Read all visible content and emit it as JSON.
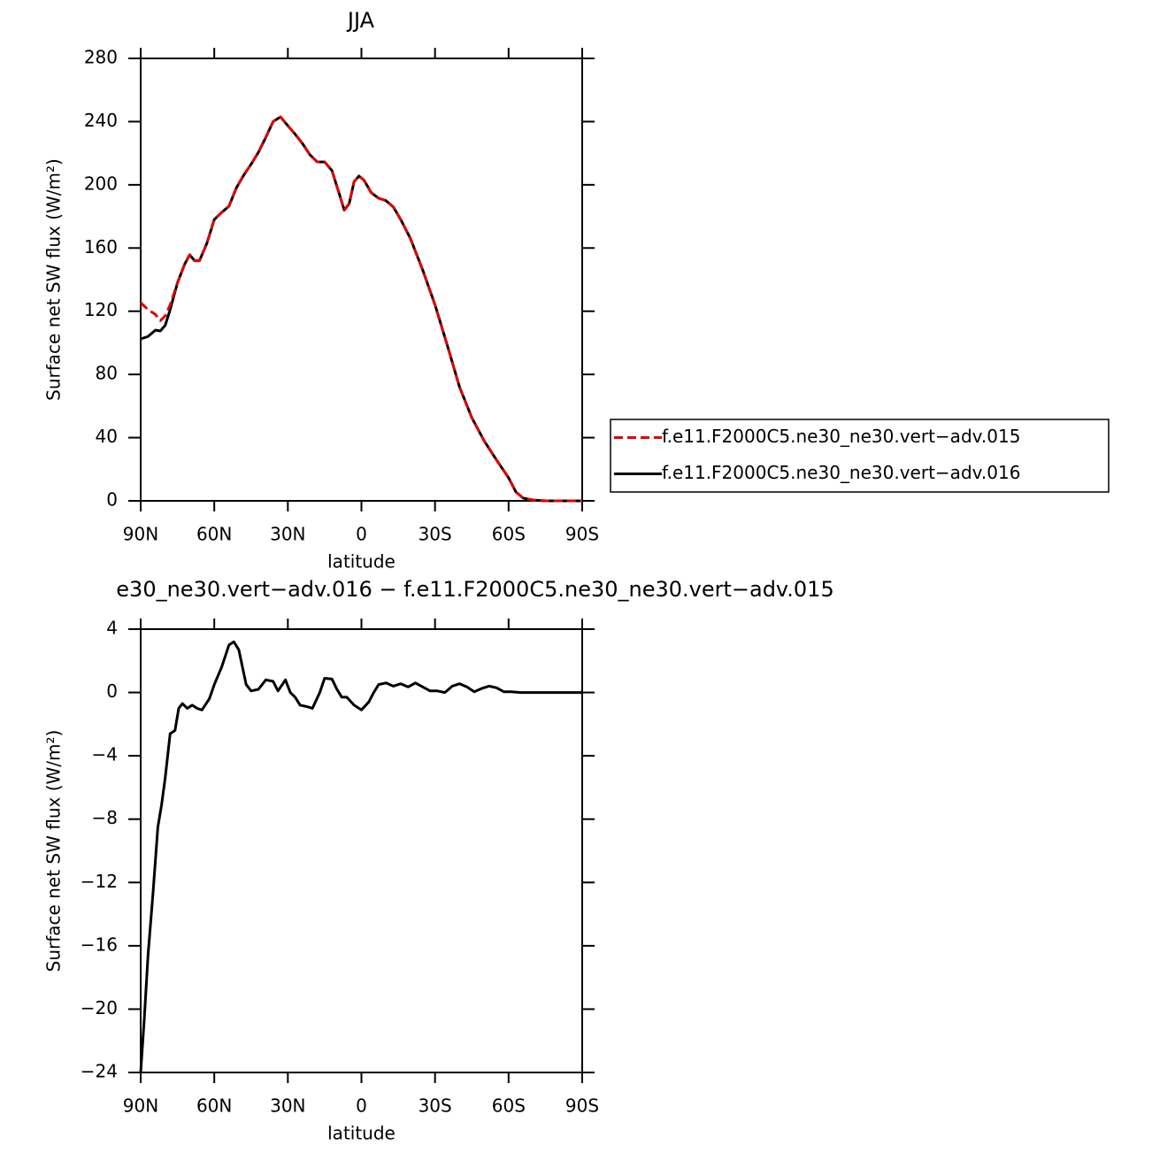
{
  "chart_data": [
    {
      "type": "line",
      "title": "JJA",
      "xlabel": "latitude",
      "ylabel": "Surface net SW flux (W/m²)",
      "xlim": [
        90,
        -90
      ],
      "ylim": [
        0,
        280
      ],
      "xticks": [
        {
          "value": 90,
          "label": "90N"
        },
        {
          "value": 60,
          "label": "60N"
        },
        {
          "value": 30,
          "label": "30N"
        },
        0,
        {
          "value": -30,
          "label": "30S"
        },
        {
          "value": -60,
          "label": "60S"
        },
        {
          "value": -90,
          "label": "90S"
        }
      ],
      "yticks": [
        0,
        40,
        80,
        120,
        160,
        200,
        240,
        280
      ],
      "legend": "right",
      "x": [
        90,
        87,
        84,
        82,
        80,
        78,
        75,
        72,
        70,
        68,
        66,
        63,
        60,
        57,
        54,
        51,
        48,
        45,
        42,
        39,
        36,
        33,
        30,
        27,
        24,
        21,
        18,
        15,
        12,
        9,
        7,
        5,
        3,
        1,
        -1,
        -4,
        -7,
        -10,
        -13,
        -16,
        -20,
        -25,
        -30,
        -35,
        -40,
        -45,
        -50,
        -55,
        -60,
        -63,
        -66,
        -70,
        -75,
        -80,
        -85,
        -90
      ],
      "series": [
        {
          "name": "f.e11.F2000C5.ne30_ne30.vert−adv.015",
          "color": "#e00000",
          "line_style": "dashed",
          "values": [
            125.4,
            121,
            118,
            114,
            117,
            124,
            138,
            150,
            155.7,
            152,
            152,
            163,
            178,
            182.5,
            186.5,
            198,
            206,
            213,
            220.6,
            230,
            240,
            243,
            237.4,
            232,
            226,
            219,
            214.5,
            214.5,
            209,
            194,
            184,
            188,
            202,
            205.5,
            203,
            195,
            191.5,
            190,
            186,
            178,
            166,
            146,
            124,
            98.5,
            72,
            52.6,
            38,
            26,
            14.6,
            5.6,
            1.7,
            0.5,
            0,
            0,
            0,
            0
          ]
        },
        {
          "name": "f.e11.F2000C5.ne30_ne30.vert−adv.016",
          "color": "#000000",
          "line_style": "solid",
          "values": [
            102.5,
            104,
            108,
            107.5,
            111,
            121,
            138,
            150,
            155.7,
            152,
            152,
            163,
            178,
            182.5,
            186.5,
            198,
            206,
            213,
            220.6,
            230,
            240,
            243,
            237.4,
            232,
            226,
            219,
            214.5,
            214.5,
            209,
            194,
            184,
            188,
            202,
            205.5,
            203,
            195,
            191.5,
            190,
            186,
            178,
            166,
            146,
            124,
            98.5,
            72,
            52.6,
            38,
            26,
            14.6,
            5.6,
            1.7,
            0.5,
            0,
            0,
            0,
            0
          ]
        }
      ]
    },
    {
      "type": "line",
      "title": "e30_ne30.vert−adv.016 − f.e11.F2000C5.ne30_ne30.vert−adv.015",
      "xlabel": "latitude",
      "ylabel": "Surface net SW flux (W/m²)",
      "xlim": [
        90,
        -90
      ],
      "ylim": [
        -24,
        4
      ],
      "xticks": [
        {
          "value": 90,
          "label": "90N"
        },
        {
          "value": 60,
          "label": "60N"
        },
        {
          "value": 30,
          "label": "30N"
        },
        0,
        {
          "value": -30,
          "label": "30S"
        },
        {
          "value": -60,
          "label": "60S"
        },
        {
          "value": -90,
          "label": "90S"
        }
      ],
      "yticks": [
        {
          "value": -24,
          "label": "−24"
        },
        {
          "value": -20,
          "label": "−20"
        },
        {
          "value": -16,
          "label": "−16"
        },
        {
          "value": -12,
          "label": "−12"
        },
        {
          "value": -8,
          "label": "−8"
        },
        {
          "value": -4,
          "label": "−4"
        },
        0,
        4
      ],
      "x": [
        90,
        88.5,
        87,
        85,
        83,
        81.5,
        80,
        78,
        76,
        74.5,
        73,
        71,
        69,
        67,
        65,
        62,
        60,
        57,
        54,
        52,
        50,
        47,
        45,
        42,
        39,
        36,
        34,
        31,
        29,
        27,
        25,
        22,
        20,
        17,
        15,
        12,
        10,
        8,
        6,
        3,
        0,
        -3,
        -5,
        -7,
        -10,
        -13,
        -16,
        -19,
        -22,
        -25,
        -28,
        -31,
        -34,
        -37,
        -40,
        -43,
        -46,
        -49,
        -52,
        -55,
        -58,
        -61,
        -65,
        -90
      ],
      "series": [
        {
          "color": "#000000",
          "line_style": "solid",
          "values": [
            -24,
            -20.5,
            -16.6,
            -12.7,
            -8.5,
            -7.1,
            -5.4,
            -2.6,
            -2.4,
            -1,
            -0.7,
            -1,
            -0.8,
            -1,
            -1.1,
            -0.4,
            0.5,
            1.6,
            3,
            3.2,
            2.7,
            0.5,
            0.1,
            0.2,
            0.8,
            0.7,
            0.1,
            0.8,
            0,
            -0.3,
            -0.8,
            -0.9,
            -1,
            0,
            0.9,
            0.85,
            0.2,
            -0.3,
            -0.3,
            -0.8,
            -1.1,
            -0.6,
            0,
            0.5,
            0.6,
            0.4,
            0.55,
            0.35,
            0.6,
            0.35,
            0.1,
            0.1,
            0,
            0.4,
            0.55,
            0.35,
            0.05,
            0.25,
            0.4,
            0.3,
            0.05,
            0.05,
            0,
            0
          ]
        }
      ]
    }
  ]
}
